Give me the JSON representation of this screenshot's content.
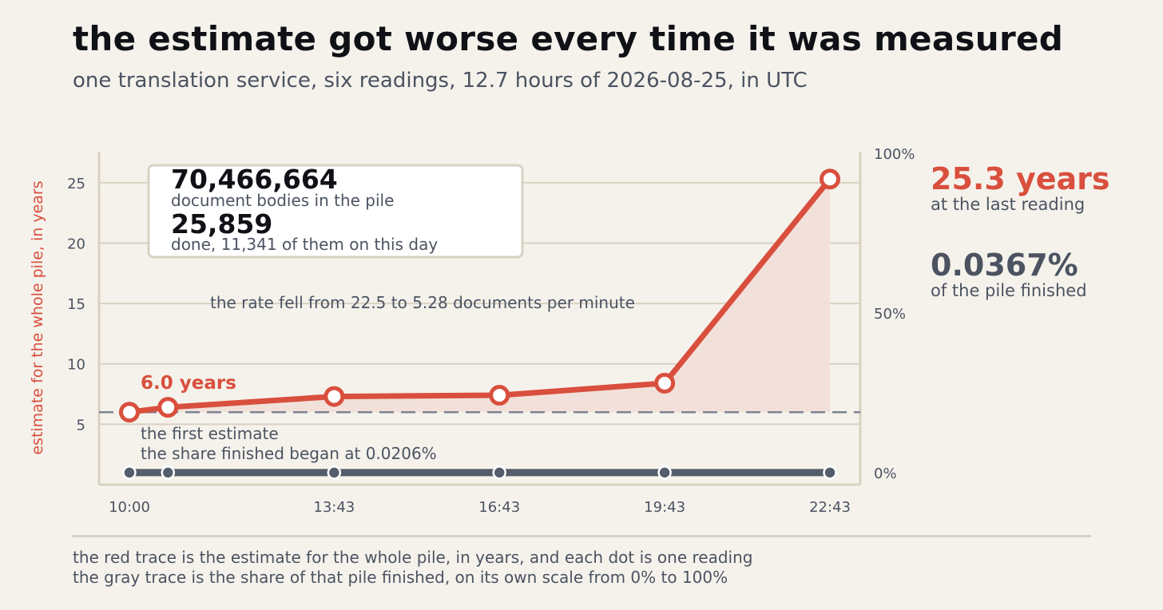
{
  "title": "the estimate got worse every time it was measured",
  "subtitle": "one translation service, six readings, 12.7 hours of 2026-08-25, in UTC",
  "colors": {
    "background": "#f5f2ec",
    "red": "#d94f3d",
    "red_fill": "#f2dfd8",
    "gray": "#545d6b",
    "grid": "#d9d2c3",
    "text": "#4b5361",
    "dark": "#0f1116"
  },
  "chart_data": {
    "type": "line",
    "ylabel": "estimate for the whole pile, in years",
    "ylim": [
      0,
      27.5
    ],
    "y_ticks": [
      5,
      10,
      15,
      20,
      25
    ],
    "y2_ticks": [
      "0%",
      "50%",
      "100%"
    ],
    "y2_values": [
      0,
      50,
      100
    ],
    "x_ticks": [
      "10:00",
      "13:43",
      "16:43",
      "19:43",
      "22:43"
    ],
    "x_tick_hours": [
      10.0,
      13.717,
      16.717,
      19.717,
      22.717
    ],
    "x_hours": [
      10.0,
      10.7,
      13.717,
      16.717,
      19.717,
      22.717
    ],
    "grid": "horizontal",
    "series": [
      {
        "name": "estimate for the whole pile, in years",
        "axis": "left",
        "color": "#d94f3d",
        "values": [
          6.0,
          6.4,
          7.3,
          7.4,
          8.4,
          25.3
        ]
      },
      {
        "name": "share of that pile finished",
        "axis": "right",
        "color": "#545d6b",
        "values": [
          0.0206,
          0.021,
          0.025,
          0.029,
          0.033,
          0.0367
        ]
      }
    ],
    "reference_line": {
      "value": 6.0,
      "style": "dashed"
    },
    "annotations": {
      "first_value": "6.0 years",
      "first_label": "the first estimate",
      "share_began": "the share finished began at 0.0206%",
      "rate_note": "the rate fell from 22.5 to 5.28 documents per minute"
    },
    "infobox": {
      "total_value": "70,466,664",
      "total_label": "document bodies in the pile",
      "done_value": "25,859",
      "done_label": "done, 11,341 of them on this day"
    }
  },
  "side": {
    "last_value": "25.3 years",
    "last_label": "at the last reading",
    "share_value": "0.0367%",
    "share_label": "of the pile finished"
  },
  "footer": {
    "line1": "the red trace is the estimate for the whole pile, in years, and each dot is one reading",
    "line2": "the gray trace is the share of that pile finished, on its own scale from 0% to 100%"
  }
}
